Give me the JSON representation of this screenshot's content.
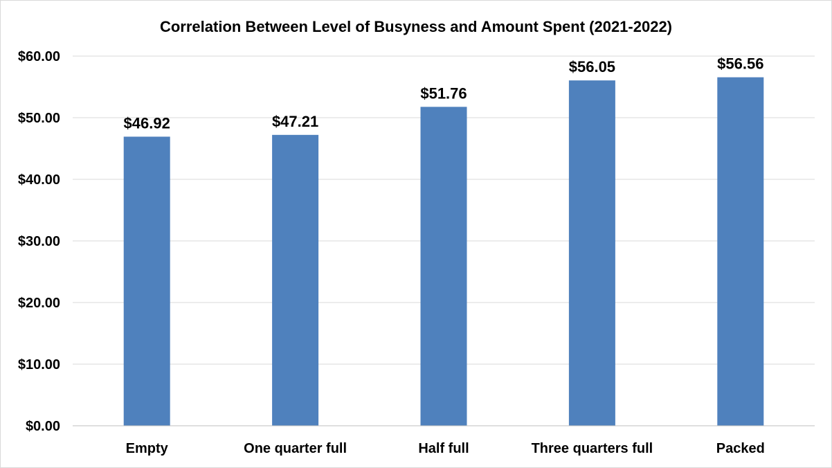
{
  "chart_data": {
    "type": "bar",
    "title": "Correlation Between Level of Busyness and Amount Spent (2021-2022)",
    "xlabel": "",
    "ylabel": "",
    "categories": [
      "Empty",
      "One quarter full",
      "Half full",
      "Three quarters full",
      "Packed"
    ],
    "values": [
      46.92,
      47.21,
      51.76,
      56.05,
      56.56
    ],
    "data_labels": [
      "$46.92",
      "$47.21",
      "$51.76",
      "$56.05",
      "$56.56"
    ],
    "y_ticks": [
      0,
      10,
      20,
      30,
      40,
      50,
      60
    ],
    "y_tick_labels": [
      "$0.00",
      "$10.00",
      "$20.00",
      "$30.00",
      "$40.00",
      "$50.00",
      "$60.00"
    ],
    "ylim": [
      0,
      60
    ],
    "grid": true,
    "legend": "none",
    "bar_color": "#4f81bd"
  }
}
